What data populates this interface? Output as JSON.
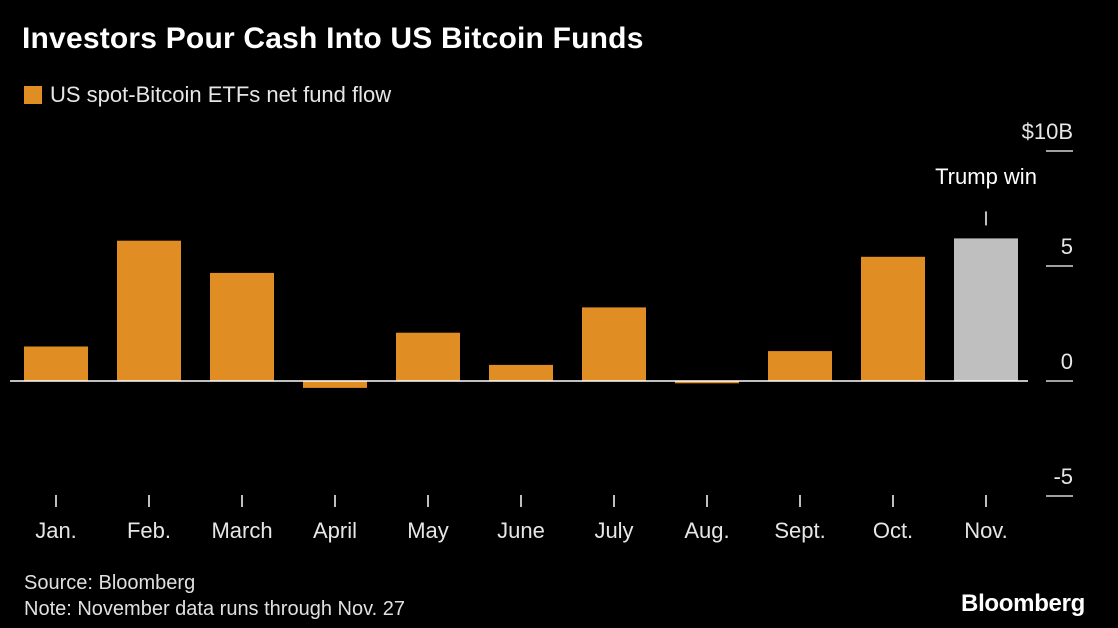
{
  "header": {
    "title": "Investors Pour Cash Into US Bitcoin Funds"
  },
  "legend": {
    "label": "US spot-Bitcoin ETFs net fund flow"
  },
  "colors": {
    "background": "#000000",
    "bar": "#e08e23",
    "highlight_bar": "#bfbfbf",
    "axis_text": "#e6e6e6",
    "zero_line": "#ffffff"
  },
  "chart_data": {
    "type": "bar",
    "categories": [
      "Jan.",
      "Feb.",
      "March",
      "April",
      "May",
      "June",
      "July",
      "Aug.",
      "Sept.",
      "Oct.",
      "Nov."
    ],
    "series": [
      {
        "name": "US spot-Bitcoin ETFs net fund flow",
        "values": [
          1.5,
          6.1,
          4.7,
          -0.3,
          2.1,
          0.7,
          3.2,
          -0.1,
          1.3,
          5.4,
          6.2
        ]
      }
    ],
    "highlight_index": 10,
    "ylim": [
      -5,
      10
    ],
    "yticks": [
      -5,
      0,
      5,
      10
    ],
    "ytick_labels": [
      "-5",
      "0",
      "5",
      "$10B"
    ],
    "axis_position": "right",
    "grid": false,
    "annotations": [
      {
        "category": "Nov.",
        "text": "Trump win"
      }
    ]
  },
  "footer": {
    "source": "Source: Bloomberg",
    "note": "Note: November data runs through Nov. 27",
    "logo": "Bloomberg"
  }
}
